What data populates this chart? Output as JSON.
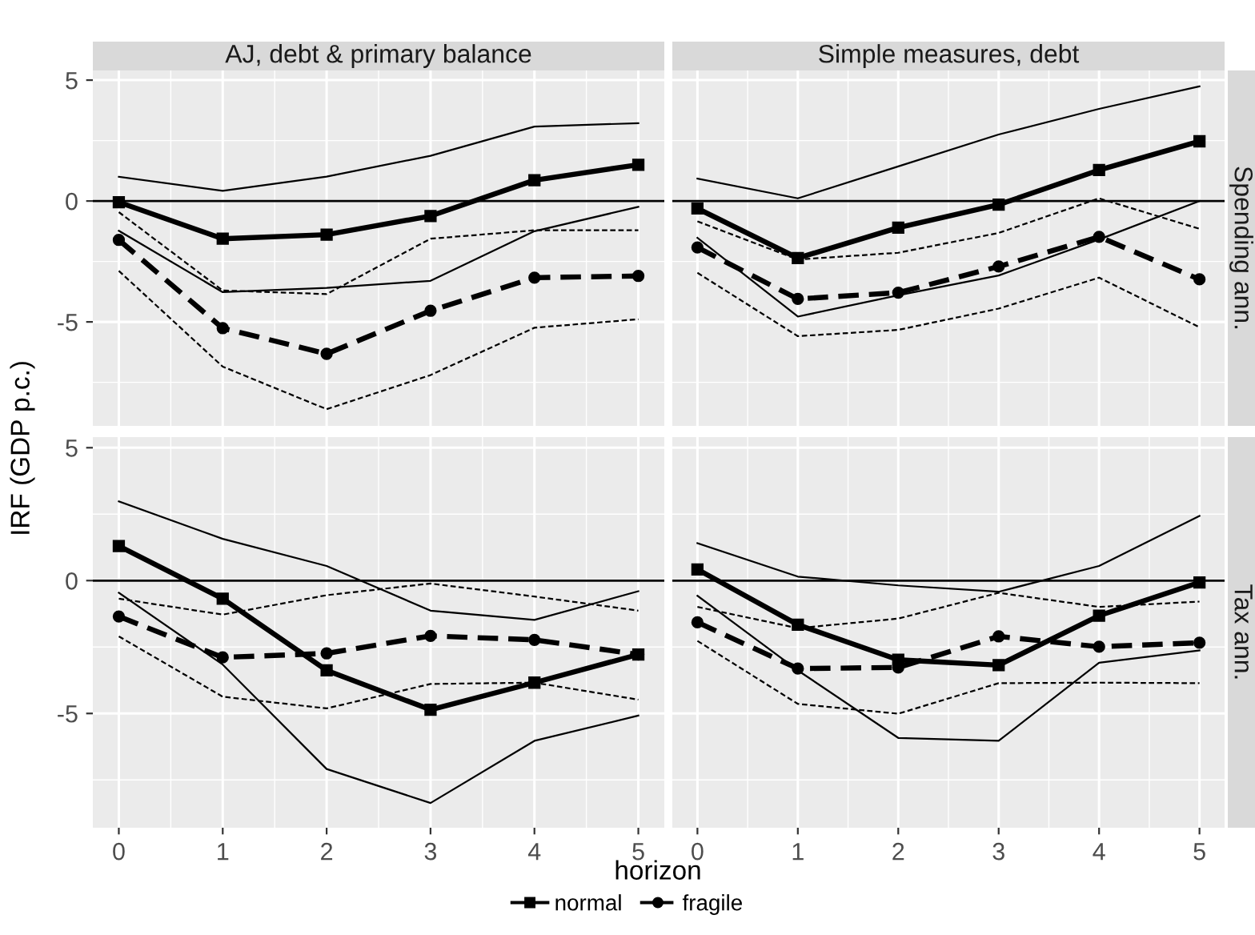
{
  "chart_data": [
    {
      "type": "line",
      "title": "AJ, debt & primary balance",
      "ylabel": "IRF (GDP p.c.)",
      "x": [
        0,
        1,
        2,
        3,
        4,
        5
      ],
      "xlim": [
        -0.25,
        5.25
      ],
      "xticks": [
        0,
        1,
        2,
        3,
        4,
        5
      ],
      "ylim": [
        -9.3,
        5.4
      ],
      "yticks": [
        -5,
        0,
        5
      ],
      "grid": true,
      "tick_labels": "y",
      "legend": "bottom",
      "ref_lines": [
        {
          "axis": "y",
          "value": 0,
          "color": "#000000"
        }
      ],
      "series": [
        {
          "name": "normal",
          "color": "#000000",
          "marker": "square",
          "line_style": "solid",
          "values": [
            -0.05,
            -1.56,
            -1.39,
            -0.62,
            0.86,
            1.5
          ]
        },
        {
          "color": "#000000",
          "marker": "none",
          "line_style": "solid",
          "values": [
            -1.23,
            -3.77,
            -3.59,
            -3.3,
            -1.25,
            -0.24
          ]
        },
        {
          "color": "#000000",
          "marker": "none",
          "line_style": "solid",
          "values": [
            1.0,
            0.42,
            1.01,
            1.87,
            3.08,
            3.22
          ]
        },
        {
          "name": "fragile",
          "color": "#000000",
          "marker": "circle",
          "line_style": "dashed",
          "values": [
            -1.61,
            -5.26,
            -6.32,
            -4.54,
            -3.17,
            -3.1
          ]
        },
        {
          "color": "#000000",
          "marker": "none",
          "line_style": "dashed",
          "values": [
            -2.89,
            -6.85,
            -8.61,
            -7.2,
            -5.24,
            -4.89
          ]
        },
        {
          "color": "#000000",
          "marker": "none",
          "line_style": "dashed",
          "values": [
            -0.46,
            -3.7,
            -3.85,
            -1.56,
            -1.21,
            -1.21
          ]
        }
      ]
    },
    {
      "type": "line",
      "title": "Simple measures, debt",
      "y2label": "Spending ann.",
      "x": [
        0,
        1,
        2,
        3,
        4,
        5
      ],
      "xlim": [
        -0.25,
        5.25
      ],
      "xticks": [
        0,
        1,
        2,
        3,
        4,
        5
      ],
      "ylim": [
        -9.3,
        5.4
      ],
      "yticks": [
        -5,
        0,
        5
      ],
      "grid": true,
      "tick_labels": false,
      "ref_lines": [
        {
          "axis": "y",
          "value": 0,
          "color": "#000000"
        }
      ],
      "series": [
        {
          "name": "normal",
          "color": "#000000",
          "marker": "square",
          "line_style": "solid",
          "values": [
            -0.31,
            -2.36,
            -1.1,
            -0.15,
            1.28,
            2.47
          ]
        },
        {
          "color": "#000000",
          "marker": "none",
          "line_style": "solid",
          "values": [
            -1.52,
            -4.78,
            -3.9,
            -3.08,
            -1.59,
            0
          ]
        },
        {
          "color": "#000000",
          "marker": "none",
          "line_style": "solid",
          "values": [
            0.93,
            0.11,
            1.43,
            2.75,
            3.81,
            4.74
          ]
        },
        {
          "name": "fragile",
          "color": "#000000",
          "marker": "circle",
          "line_style": "dashed",
          "values": [
            -1.92,
            -4.05,
            -3.79,
            -2.71,
            -1.48,
            -3.24
          ]
        },
        {
          "color": "#000000",
          "marker": "none",
          "line_style": "dashed",
          "values": [
            -2.97,
            -5.59,
            -5.33,
            -4.45,
            -3.17,
            -5.22
          ]
        },
        {
          "color": "#000000",
          "marker": "none",
          "line_style": "dashed",
          "values": [
            -0.84,
            -2.42,
            -2.14,
            -1.32,
            0.11,
            -1.15
          ]
        }
      ]
    },
    {
      "type": "line",
      "xlabel": "horizon",
      "x": [
        0,
        1,
        2,
        3,
        4,
        5
      ],
      "xlim": [
        -0.25,
        5.25
      ],
      "xticks": [
        0,
        1,
        2,
        3,
        4,
        5
      ],
      "ylim": [
        -9.3,
        5.4
      ],
      "yticks": [
        -5,
        0,
        5
      ],
      "grid": true,
      "ref_lines": [
        {
          "axis": "y",
          "value": 0,
          "color": "#000000"
        }
      ],
      "series": [
        {
          "name": "normal",
          "color": "#000000",
          "marker": "square",
          "line_style": "solid",
          "values": [
            1.3,
            -0.68,
            -3.38,
            -4.86,
            -3.84,
            -2.78
          ]
        },
        {
          "color": "#000000",
          "marker": "none",
          "line_style": "solid",
          "values": [
            -0.46,
            -3.16,
            -7.09,
            -8.37,
            -6.03,
            -5.08
          ]
        },
        {
          "color": "#000000",
          "marker": "none",
          "line_style": "solid",
          "values": [
            2.98,
            1.57,
            0.55,
            -1.13,
            -1.48,
            -0.4
          ]
        },
        {
          "name": "fragile",
          "color": "#000000",
          "marker": "circle",
          "line_style": "dashed",
          "values": [
            -1.35,
            -2.89,
            -2.74,
            -2.08,
            -2.23,
            -2.78
          ]
        },
        {
          "color": "#000000",
          "marker": "none",
          "line_style": "dashed",
          "values": [
            -2.1,
            -4.37,
            -4.81,
            -3.89,
            -3.84,
            -4.48
          ]
        },
        {
          "color": "#000000",
          "marker": "none",
          "line_style": "dashed",
          "values": [
            -0.68,
            -1.28,
            -0.55,
            -0.11,
            -0.6,
            -1.13
          ]
        }
      ]
    },
    {
      "type": "line",
      "y2label": "Tax ann.",
      "x": [
        0,
        1,
        2,
        3,
        4,
        5
      ],
      "xlim": [
        -0.25,
        5.25
      ],
      "xticks": [
        0,
        1,
        2,
        3,
        4,
        5
      ],
      "ylim": [
        -9.3,
        5.4
      ],
      "yticks": [
        -5,
        0,
        5
      ],
      "grid": true,
      "tick_labels": "x",
      "ref_lines": [
        {
          "axis": "y",
          "value": 0,
          "color": "#000000"
        }
      ],
      "series": [
        {
          "name": "normal",
          "color": "#000000",
          "marker": "square",
          "line_style": "solid",
          "values": [
            0.42,
            -1.66,
            -2.98,
            -3.18,
            -1.32,
            -0.07
          ]
        },
        {
          "color": "#000000",
          "marker": "none",
          "line_style": "solid",
          "values": [
            -0.57,
            -3.38,
            -5.92,
            -6.03,
            -3.09,
            -2.63
          ]
        },
        {
          "color": "#000000",
          "marker": "none",
          "line_style": "solid",
          "values": [
            1.41,
            0.15,
            -0.18,
            -0.42,
            0.55,
            2.43
          ]
        },
        {
          "name": "fragile",
          "color": "#000000",
          "marker": "circle",
          "line_style": "dashed",
          "values": [
            -1.57,
            -3.31,
            -3.27,
            -2.1,
            -2.49,
            -2.34
          ]
        },
        {
          "color": "#000000",
          "marker": "none",
          "line_style": "dashed",
          "values": [
            -2.27,
            -4.64,
            -5.01,
            -3.86,
            -3.84,
            -3.86
          ]
        },
        {
          "color": "#000000",
          "marker": "none",
          "line_style": "dashed",
          "values": [
            -0.99,
            -1.79,
            -1.43,
            -0.46,
            -0.99,
            -0.79
          ]
        }
      ]
    }
  ]
}
